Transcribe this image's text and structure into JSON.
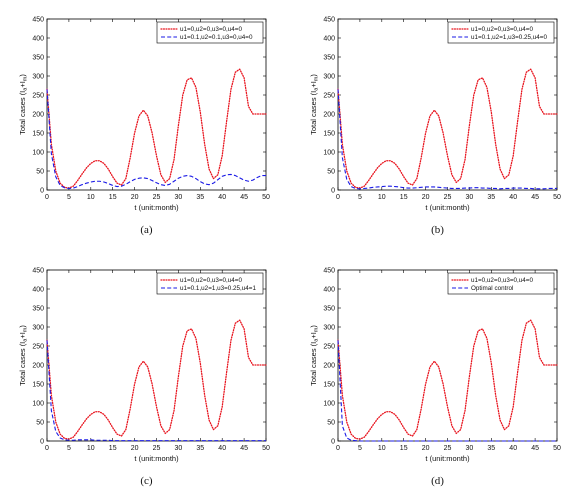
{
  "colors": {
    "red": "#e8141e",
    "blue": "#1a1ae6",
    "axis": "#000000"
  },
  "chart_data": [
    {
      "type": "line",
      "caption": "(a)",
      "xlabel": "t (unit:month)",
      "ylabel": "Total cases (I_a+I_m)",
      "xlim": [
        0,
        50
      ],
      "ylim": [
        0,
        450
      ],
      "xticks": [
        0,
        5,
        10,
        15,
        20,
        25,
        30,
        35,
        40,
        45,
        50
      ],
      "yticks": [
        0,
        50,
        100,
        150,
        200,
        250,
        300,
        350,
        400,
        450
      ],
      "legend_position": "top-right",
      "series": [
        {
          "name": "u1=0,u2=0,u3=0,u4=0",
          "style": "dotted",
          "color": "red",
          "x": [
            0,
            1,
            2,
            3,
            4,
            5,
            6,
            7,
            8,
            9,
            10,
            11,
            12,
            13,
            14,
            15,
            16,
            17,
            18,
            19,
            20,
            21,
            22,
            23,
            24,
            25,
            26,
            27,
            28,
            29,
            30,
            31,
            32,
            33,
            34,
            35,
            36,
            37,
            38,
            39,
            40,
            41,
            42,
            43,
            44,
            45,
            46,
            47,
            48,
            49,
            50
          ],
          "y": [
            265,
            120,
            50,
            18,
            7,
            5,
            10,
            25,
            42,
            58,
            70,
            77,
            77,
            70,
            55,
            35,
            18,
            13,
            30,
            85,
            150,
            195,
            210,
            195,
            150,
            90,
            40,
            20,
            30,
            80,
            170,
            250,
            290,
            295,
            270,
            205,
            120,
            55,
            30,
            40,
            90,
            180,
            265,
            310,
            318,
            295,
            220,
            200,
            200,
            200,
            200
          ]
        },
        {
          "name": "u1=0.1,u2=0.1,u3=0,u4=0",
          "style": "dashed",
          "color": "blue",
          "x": [
            0,
            1,
            2,
            3,
            4,
            5,
            6,
            7,
            8,
            9,
            10,
            11,
            12,
            13,
            14,
            15,
            16,
            17,
            18,
            19,
            20,
            21,
            22,
            23,
            24,
            25,
            26,
            27,
            28,
            29,
            30,
            31,
            32,
            33,
            34,
            35,
            36,
            37,
            38,
            39,
            40,
            41,
            42,
            43,
            44,
            45,
            46,
            47,
            48,
            49,
            50
          ],
          "y": [
            265,
            95,
            35,
            12,
            6,
            4,
            5,
            9,
            14,
            18,
            21,
            23,
            23,
            21,
            17,
            12,
            9,
            10,
            15,
            22,
            28,
            31,
            32,
            30,
            25,
            19,
            14,
            12,
            15,
            23,
            31,
            36,
            38,
            36,
            30,
            22,
            16,
            14,
            18,
            27,
            36,
            40,
            41,
            38,
            32,
            26,
            23,
            26,
            33,
            38,
            38
          ]
        }
      ]
    },
    {
      "type": "line",
      "caption": "(b)",
      "xlabel": "t (unit:month)",
      "ylabel": "Total cases (I_a+I_m)",
      "xlim": [
        0,
        50
      ],
      "ylim": [
        0,
        450
      ],
      "xticks": [
        0,
        5,
        10,
        15,
        20,
        25,
        30,
        35,
        40,
        45,
        50
      ],
      "yticks": [
        0,
        50,
        100,
        150,
        200,
        250,
        300,
        350,
        400,
        450
      ],
      "legend_position": "top-right",
      "series": [
        {
          "name": "u1=0,u2=0,u3=0,u4=0",
          "style": "dotted",
          "color": "red",
          "x": [
            0,
            1,
            2,
            3,
            4,
            5,
            6,
            7,
            8,
            9,
            10,
            11,
            12,
            13,
            14,
            15,
            16,
            17,
            18,
            19,
            20,
            21,
            22,
            23,
            24,
            25,
            26,
            27,
            28,
            29,
            30,
            31,
            32,
            33,
            34,
            35,
            36,
            37,
            38,
            39,
            40,
            41,
            42,
            43,
            44,
            45,
            46,
            47,
            48,
            49,
            50
          ],
          "y": [
            265,
            120,
            50,
            18,
            7,
            5,
            10,
            25,
            42,
            58,
            70,
            77,
            77,
            70,
            55,
            35,
            18,
            13,
            30,
            85,
            150,
            195,
            210,
            195,
            150,
            90,
            40,
            20,
            30,
            80,
            170,
            250,
            290,
            295,
            270,
            205,
            120,
            55,
            30,
            40,
            90,
            180,
            265,
            310,
            318,
            295,
            220,
            200,
            200,
            200,
            200
          ]
        },
        {
          "name": "u1=0.1,u2=1,u3=0.25,u4=0",
          "style": "dashed",
          "color": "blue",
          "x": [
            0,
            1,
            2,
            3,
            4,
            5,
            6,
            7,
            8,
            9,
            10,
            11,
            12,
            13,
            14,
            15,
            16,
            17,
            18,
            19,
            20,
            21,
            22,
            23,
            24,
            25,
            26,
            27,
            28,
            29,
            30,
            31,
            32,
            33,
            34,
            35,
            36,
            37,
            38,
            39,
            40,
            41,
            42,
            43,
            44,
            45,
            46,
            47,
            48,
            49,
            50
          ],
          "y": [
            265,
            85,
            28,
            9,
            4,
            3,
            4,
            5,
            7,
            8,
            9,
            10,
            10,
            9,
            8,
            6,
            5,
            5,
            6,
            7,
            8,
            8,
            8,
            7,
            6,
            5,
            4,
            4,
            4,
            5,
            5,
            6,
            6,
            5,
            5,
            4,
            4,
            3,
            4,
            4,
            5,
            5,
            5,
            4,
            4,
            3,
            3,
            3,
            4,
            4,
            4
          ]
        }
      ]
    },
    {
      "type": "line",
      "caption": "(c)",
      "xlabel": "t (unit:month)",
      "ylabel": "Total cases (I_a+I_m)",
      "xlim": [
        0,
        50
      ],
      "ylim": [
        0,
        450
      ],
      "xticks": [
        0,
        5,
        10,
        15,
        20,
        25,
        30,
        35,
        40,
        45,
        50
      ],
      "yticks": [
        0,
        50,
        100,
        150,
        200,
        250,
        300,
        350,
        400,
        450
      ],
      "legend_position": "top-right",
      "series": [
        {
          "name": "u1=0,u2=0,u3=0,u4=0",
          "style": "dotted",
          "color": "red",
          "x": [
            0,
            1,
            2,
            3,
            4,
            5,
            6,
            7,
            8,
            9,
            10,
            11,
            12,
            13,
            14,
            15,
            16,
            17,
            18,
            19,
            20,
            21,
            22,
            23,
            24,
            25,
            26,
            27,
            28,
            29,
            30,
            31,
            32,
            33,
            34,
            35,
            36,
            37,
            38,
            39,
            40,
            41,
            42,
            43,
            44,
            45,
            46,
            47,
            48,
            49,
            50
          ],
          "y": [
            265,
            120,
            50,
            18,
            7,
            5,
            10,
            25,
            42,
            58,
            70,
            77,
            77,
            70,
            55,
            35,
            18,
            13,
            30,
            85,
            150,
            195,
            210,
            195,
            150,
            90,
            40,
            20,
            30,
            80,
            170,
            250,
            290,
            295,
            270,
            205,
            120,
            55,
            30,
            40,
            90,
            180,
            265,
            310,
            318,
            295,
            220,
            200,
            200,
            200,
            200
          ]
        },
        {
          "name": "u1=0.1,u2=1,u3=0.25,u4=1",
          "style": "dashed",
          "color": "blue",
          "x": [
            0,
            1,
            2,
            3,
            4,
            5,
            6,
            7,
            8,
            9,
            10,
            11,
            12,
            13,
            14,
            15,
            16,
            17,
            18,
            19,
            20,
            21,
            22,
            23,
            24,
            25,
            26,
            27,
            28,
            29,
            30,
            31,
            32,
            33,
            34,
            35,
            36,
            37,
            38,
            39,
            40,
            41,
            42,
            43,
            44,
            45,
            46,
            47,
            48,
            49,
            50
          ],
          "y": [
            265,
            80,
            25,
            8,
            3,
            2,
            2,
            3,
            3,
            3,
            3,
            2,
            2,
            2,
            2,
            1,
            1,
            1,
            1,
            1,
            1,
            1,
            1,
            1,
            1,
            1,
            1,
            1,
            1,
            1,
            1,
            1,
            1,
            1,
            1,
            1,
            1,
            1,
            1,
            1,
            1,
            1,
            1,
            1,
            1,
            1,
            1,
            1,
            1,
            1,
            1
          ]
        }
      ]
    },
    {
      "type": "line",
      "caption": "(d)",
      "xlabel": "t (unit:month)",
      "ylabel": "Total cases (I_a+I_m)",
      "xlim": [
        0,
        50
      ],
      "ylim": [
        0,
        450
      ],
      "xticks": [
        0,
        5,
        10,
        15,
        20,
        25,
        30,
        35,
        40,
        45,
        50
      ],
      "yticks": [
        0,
        50,
        100,
        150,
        200,
        250,
        300,
        350,
        400,
        450
      ],
      "legend_position": "top-right",
      "series": [
        {
          "name": "u1=0,u2=0,u3=0,u4=0",
          "style": "dotted",
          "color": "red",
          "x": [
            0,
            1,
            2,
            3,
            4,
            5,
            6,
            7,
            8,
            9,
            10,
            11,
            12,
            13,
            14,
            15,
            16,
            17,
            18,
            19,
            20,
            21,
            22,
            23,
            24,
            25,
            26,
            27,
            28,
            29,
            30,
            31,
            32,
            33,
            34,
            35,
            36,
            37,
            38,
            39,
            40,
            41,
            42,
            43,
            44,
            45,
            46,
            47,
            48,
            49,
            50
          ],
          "y": [
            265,
            120,
            50,
            18,
            7,
            5,
            10,
            25,
            42,
            58,
            70,
            77,
            77,
            70,
            55,
            35,
            18,
            13,
            30,
            85,
            150,
            195,
            210,
            195,
            150,
            90,
            40,
            20,
            30,
            80,
            170,
            250,
            290,
            295,
            270,
            205,
            120,
            55,
            30,
            40,
            90,
            180,
            265,
            310,
            318,
            295,
            220,
            200,
            200,
            200,
            200
          ]
        },
        {
          "name": "Optimal control",
          "style": "dashed",
          "color": "blue",
          "x": [
            0,
            1,
            2,
            3,
            4,
            5,
            6,
            7,
            8,
            9,
            10,
            11,
            12,
            13,
            14,
            15,
            16,
            17,
            18,
            19,
            20,
            21,
            22,
            23,
            24,
            25,
            26,
            27,
            28,
            29,
            30,
            31,
            32,
            33,
            34,
            35,
            36,
            37,
            38,
            39,
            40,
            41,
            42,
            43,
            44,
            45,
            46,
            47,
            48,
            49,
            50
          ],
          "y": [
            265,
            40,
            8,
            2,
            1,
            0,
            0,
            0,
            0,
            0,
            0,
            0,
            0,
            0,
            0,
            0,
            0,
            0,
            0,
            0,
            0,
            0,
            0,
            0,
            0,
            0,
            0,
            0,
            0,
            0,
            0,
            0,
            0,
            0,
            0,
            0,
            0,
            0,
            0,
            0,
            0,
            0,
            0,
            0,
            0,
            0,
            0,
            0,
            0,
            0,
            0
          ]
        }
      ]
    }
  ]
}
